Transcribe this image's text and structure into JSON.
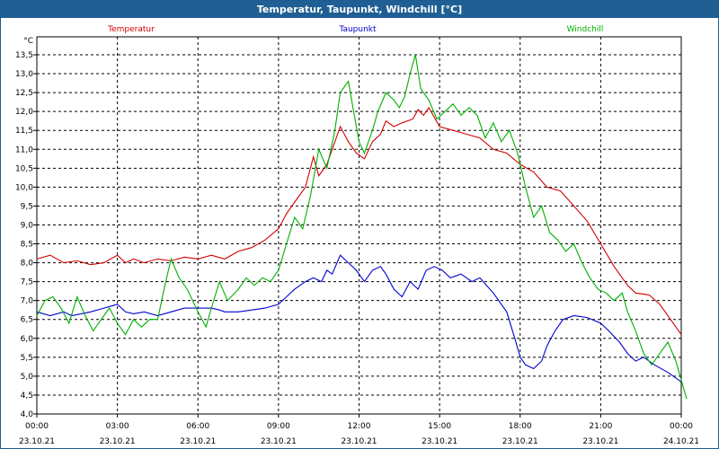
{
  "window": {
    "title": "Temperatur, Taupunkt, Windchill [°C]"
  },
  "chart_data": {
    "type": "line",
    "title": "Temperatur, Taupunkt, Windchill [°C]",
    "ylabel": "°C",
    "xlabel": "",
    "ylim": [
      4.0,
      13.5
    ],
    "xlim": [
      0,
      24
    ],
    "grid": true,
    "legend_position": "top",
    "y_ticks": [
      "4,0",
      "4,5",
      "5,0",
      "5,5",
      "6,0",
      "6,5",
      "7,0",
      "7,5",
      "8,0",
      "8,5",
      "9,0",
      "9,5",
      "10,0",
      "10,5",
      "11,0",
      "11,5",
      "12,0",
      "12,5",
      "13,0",
      "13,5"
    ],
    "x_ticks": [
      {
        "time": "00:00",
        "date": "23.10.21"
      },
      {
        "time": "03:00",
        "date": "23.10.21"
      },
      {
        "time": "06:00",
        "date": "23.10.21"
      },
      {
        "time": "09:00",
        "date": "23.10.21"
      },
      {
        "time": "12:00",
        "date": "23.10.21"
      },
      {
        "time": "15:00",
        "date": "23.10.21"
      },
      {
        "time": "18:00",
        "date": "23.10.21"
      },
      {
        "time": "21:00",
        "date": "23.10.21"
      },
      {
        "time": "00:00",
        "date": "24.10.21"
      }
    ],
    "series": [
      {
        "name": "Temperatur",
        "color": "#d00000",
        "points": [
          [
            0,
            8.1
          ],
          [
            0.5,
            8.2
          ],
          [
            1,
            8.0
          ],
          [
            1.5,
            8.05
          ],
          [
            2,
            7.95
          ],
          [
            2.5,
            8.0
          ],
          [
            3,
            8.2
          ],
          [
            3.3,
            8.0
          ],
          [
            3.6,
            8.1
          ],
          [
            4,
            8.0
          ],
          [
            4.5,
            8.1
          ],
          [
            5,
            8.05
          ],
          [
            5.5,
            8.15
          ],
          [
            6,
            8.1
          ],
          [
            6.5,
            8.2
          ],
          [
            7,
            8.1
          ],
          [
            7.5,
            8.3
          ],
          [
            8,
            8.4
          ],
          [
            8.5,
            8.6
          ],
          [
            9,
            8.9
          ],
          [
            9.3,
            9.3
          ],
          [
            9.7,
            9.7
          ],
          [
            10,
            10.0
          ],
          [
            10.3,
            10.8
          ],
          [
            10.5,
            10.3
          ],
          [
            10.8,
            10.6
          ],
          [
            11,
            11.0
          ],
          [
            11.3,
            11.6
          ],
          [
            11.6,
            11.2
          ],
          [
            11.9,
            10.9
          ],
          [
            12.2,
            10.75
          ],
          [
            12.5,
            11.2
          ],
          [
            12.8,
            11.4
          ],
          [
            13,
            11.75
          ],
          [
            13.3,
            11.6
          ],
          [
            13.6,
            11.7
          ],
          [
            14,
            11.8
          ],
          [
            14.2,
            12.05
          ],
          [
            14.4,
            11.9
          ],
          [
            14.6,
            12.1
          ],
          [
            15,
            11.6
          ],
          [
            15.5,
            11.5
          ],
          [
            16,
            11.4
          ],
          [
            16.5,
            11.3
          ],
          [
            17,
            11.0
          ],
          [
            17.5,
            10.9
          ],
          [
            18,
            10.6
          ],
          [
            18.5,
            10.4
          ],
          [
            19,
            10.0
          ],
          [
            19.5,
            9.9
          ],
          [
            20,
            9.5
          ],
          [
            20.5,
            9.1
          ],
          [
            21,
            8.5
          ],
          [
            21.5,
            7.9
          ],
          [
            22,
            7.4
          ],
          [
            22.3,
            7.2
          ],
          [
            22.8,
            7.15
          ],
          [
            23.2,
            6.9
          ],
          [
            23.6,
            6.5
          ],
          [
            24,
            6.1
          ]
        ]
      },
      {
        "name": "Taupunkt",
        "color": "#0000cc",
        "points": [
          [
            0,
            6.7
          ],
          [
            0.5,
            6.6
          ],
          [
            1,
            6.7
          ],
          [
            1.3,
            6.6
          ],
          [
            2,
            6.7
          ],
          [
            2.5,
            6.8
          ],
          [
            3,
            6.9
          ],
          [
            3.3,
            6.7
          ],
          [
            3.6,
            6.65
          ],
          [
            4,
            6.7
          ],
          [
            4.5,
            6.6
          ],
          [
            5,
            6.7
          ],
          [
            5.5,
            6.8
          ],
          [
            6,
            6.8
          ],
          [
            6.5,
            6.8
          ],
          [
            6.8,
            6.75
          ],
          [
            7,
            6.7
          ],
          [
            7.5,
            6.7
          ],
          [
            8,
            6.75
          ],
          [
            8.5,
            6.8
          ],
          [
            9,
            6.9
          ],
          [
            9.3,
            7.1
          ],
          [
            9.6,
            7.3
          ],
          [
            10,
            7.5
          ],
          [
            10.3,
            7.6
          ],
          [
            10.6,
            7.5
          ],
          [
            10.8,
            7.8
          ],
          [
            11,
            7.7
          ],
          [
            11.3,
            8.2
          ],
          [
            11.6,
            8.0
          ],
          [
            11.9,
            7.8
          ],
          [
            12.2,
            7.5
          ],
          [
            12.5,
            7.8
          ],
          [
            12.8,
            7.9
          ],
          [
            13,
            7.7
          ],
          [
            13.3,
            7.3
          ],
          [
            13.6,
            7.1
          ],
          [
            13.9,
            7.5
          ],
          [
            14.2,
            7.3
          ],
          [
            14.5,
            7.8
          ],
          [
            14.8,
            7.9
          ],
          [
            15.1,
            7.8
          ],
          [
            15.4,
            7.6
          ],
          [
            15.8,
            7.7
          ],
          [
            16.2,
            7.5
          ],
          [
            16.5,
            7.6
          ],
          [
            17,
            7.2
          ],
          [
            17.5,
            6.7
          ],
          [
            17.8,
            6.0
          ],
          [
            18,
            5.5
          ],
          [
            18.2,
            5.3
          ],
          [
            18.5,
            5.2
          ],
          [
            18.8,
            5.4
          ],
          [
            19,
            5.8
          ],
          [
            19.3,
            6.2
          ],
          [
            19.6,
            6.5
          ],
          [
            20,
            6.6
          ],
          [
            20.5,
            6.55
          ],
          [
            21,
            6.4
          ],
          [
            21.3,
            6.2
          ],
          [
            21.7,
            5.9
          ],
          [
            22,
            5.6
          ],
          [
            22.3,
            5.4
          ],
          [
            22.6,
            5.5
          ],
          [
            23,
            5.3
          ],
          [
            23.5,
            5.1
          ],
          [
            24,
            4.85
          ]
        ]
      },
      {
        "name": "Windchill",
        "color": "#00b000",
        "points": [
          [
            0,
            6.6
          ],
          [
            0.3,
            7.0
          ],
          [
            0.6,
            7.1
          ],
          [
            0.9,
            6.8
          ],
          [
            1.2,
            6.4
          ],
          [
            1.5,
            7.1
          ],
          [
            1.8,
            6.6
          ],
          [
            2.1,
            6.2
          ],
          [
            2.4,
            6.5
          ],
          [
            2.7,
            6.8
          ],
          [
            3.0,
            6.4
          ],
          [
            3.3,
            6.1
          ],
          [
            3.6,
            6.5
          ],
          [
            3.9,
            6.3
          ],
          [
            4.2,
            6.5
          ],
          [
            4.5,
            6.5
          ],
          [
            4.8,
            7.5
          ],
          [
            5.0,
            8.1
          ],
          [
            5.3,
            7.6
          ],
          [
            5.6,
            7.3
          ],
          [
            6.0,
            6.7
          ],
          [
            6.3,
            6.3
          ],
          [
            6.5,
            6.8
          ],
          [
            6.8,
            7.5
          ],
          [
            7.1,
            7.0
          ],
          [
            7.5,
            7.3
          ],
          [
            7.8,
            7.6
          ],
          [
            8.1,
            7.4
          ],
          [
            8.4,
            7.6
          ],
          [
            8.7,
            7.5
          ],
          [
            9.0,
            7.8
          ],
          [
            9.3,
            8.5
          ],
          [
            9.6,
            9.2
          ],
          [
            9.9,
            8.9
          ],
          [
            10.2,
            9.8
          ],
          [
            10.5,
            11.0
          ],
          [
            10.8,
            10.5
          ],
          [
            11.1,
            11.5
          ],
          [
            11.3,
            12.5
          ],
          [
            11.6,
            12.8
          ],
          [
            11.8,
            12.0
          ],
          [
            12.0,
            11.2
          ],
          [
            12.2,
            10.9
          ],
          [
            12.5,
            11.5
          ],
          [
            12.7,
            12.0
          ],
          [
            13.0,
            12.5
          ],
          [
            13.3,
            12.3
          ],
          [
            13.5,
            12.1
          ],
          [
            13.7,
            12.4
          ],
          [
            13.9,
            13.0
          ],
          [
            14.1,
            13.5
          ],
          [
            14.3,
            12.6
          ],
          [
            14.6,
            12.3
          ],
          [
            14.9,
            11.8
          ],
          [
            15.2,
            12.0
          ],
          [
            15.5,
            12.2
          ],
          [
            15.8,
            11.9
          ],
          [
            16.1,
            12.1
          ],
          [
            16.4,
            11.9
          ],
          [
            16.7,
            11.3
          ],
          [
            17.0,
            11.7
          ],
          [
            17.3,
            11.2
          ],
          [
            17.6,
            11.5
          ],
          [
            17.9,
            10.9
          ],
          [
            18.2,
            10.0
          ],
          [
            18.5,
            9.2
          ],
          [
            18.8,
            9.5
          ],
          [
            19.1,
            8.8
          ],
          [
            19.4,
            8.6
          ],
          [
            19.7,
            8.3
          ],
          [
            20.0,
            8.5
          ],
          [
            20.3,
            8.0
          ],
          [
            20.6,
            7.6
          ],
          [
            20.9,
            7.3
          ],
          [
            21.2,
            7.2
          ],
          [
            21.5,
            7.0
          ],
          [
            21.8,
            7.2
          ],
          [
            22.0,
            6.7
          ],
          [
            22.3,
            6.2
          ],
          [
            22.6,
            5.6
          ],
          [
            22.9,
            5.3
          ],
          [
            23.2,
            5.6
          ],
          [
            23.5,
            5.9
          ],
          [
            23.8,
            5.4
          ],
          [
            24.0,
            4.9
          ],
          [
            24.2,
            4.4
          ]
        ]
      }
    ]
  }
}
